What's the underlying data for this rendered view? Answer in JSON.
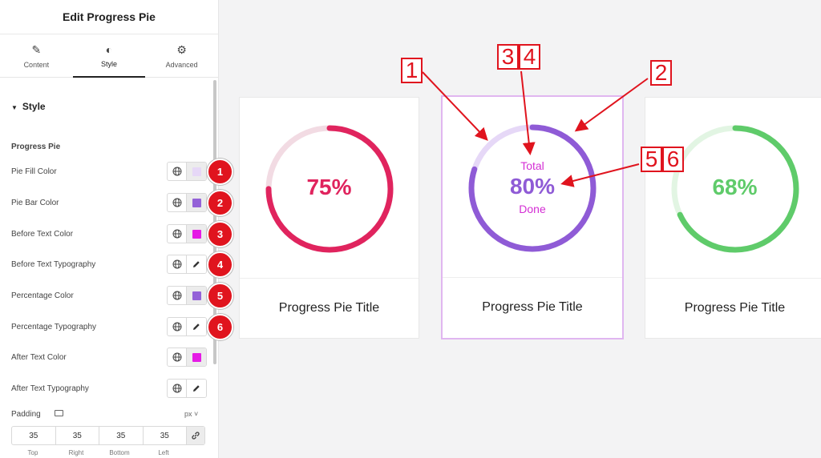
{
  "panel": {
    "title": "Edit Progress Pie",
    "tabs": [
      {
        "label": "Content",
        "icon": "pencil-icon"
      },
      {
        "label": "Style",
        "icon": "contrast-icon"
      },
      {
        "label": "Advanced",
        "icon": "gear-icon"
      }
    ],
    "active_tab": "Style",
    "section_title": "Style",
    "group_title": "Progress Pie",
    "controls": [
      {
        "label": "Pie Fill Color",
        "kind": "color",
        "color": "#e6d8f7",
        "badge": "1"
      },
      {
        "label": "Pie Bar Color",
        "kind": "color",
        "color": "#9462d8",
        "badge": "2"
      },
      {
        "label": "Before Text Color",
        "kind": "color",
        "color": "#e51be5",
        "badge": "3"
      },
      {
        "label": "Before Text Typography",
        "kind": "typography",
        "badge": "4"
      },
      {
        "label": "Percentage Color",
        "kind": "color",
        "color": "#9462d8",
        "badge": "5"
      },
      {
        "label": "Percentage Typography",
        "kind": "typography",
        "badge": "6"
      },
      {
        "label": "After Text Color",
        "kind": "color",
        "color": "#e51be5"
      },
      {
        "label": "After Text Typography",
        "kind": "typography"
      }
    ],
    "padding": {
      "label": "Padding",
      "unit": "px",
      "values": [
        "35",
        "35",
        "35",
        "35"
      ],
      "sides": [
        "Top",
        "Right",
        "Bottom",
        "Left"
      ]
    }
  },
  "cards": [
    {
      "percent": 0.75,
      "percent_label": "75%",
      "bar_color": "#e0245e",
      "fill_color": "#f2dbe3",
      "text_color": "#e0245e",
      "title": "Progress Pie Title",
      "before": "",
      "after": ""
    },
    {
      "percent": 0.8,
      "percent_label": "80%",
      "bar_color": "#8f5bd6",
      "fill_color": "#e6d8f7",
      "text_color": "#8f5bd6",
      "title": "Progress Pie Title",
      "before": "Total",
      "after": "Done",
      "extra_color": "#d42ed4"
    },
    {
      "percent": 0.68,
      "percent_label": "68%",
      "bar_color": "#5fcb6a",
      "fill_color": "#e2f5e3",
      "text_color": "#5fcb6a",
      "title": "Progress Pie Title",
      "before": "",
      "after": ""
    }
  ],
  "callouts": [
    "1",
    "3",
    "4",
    "2",
    "5",
    "6"
  ]
}
